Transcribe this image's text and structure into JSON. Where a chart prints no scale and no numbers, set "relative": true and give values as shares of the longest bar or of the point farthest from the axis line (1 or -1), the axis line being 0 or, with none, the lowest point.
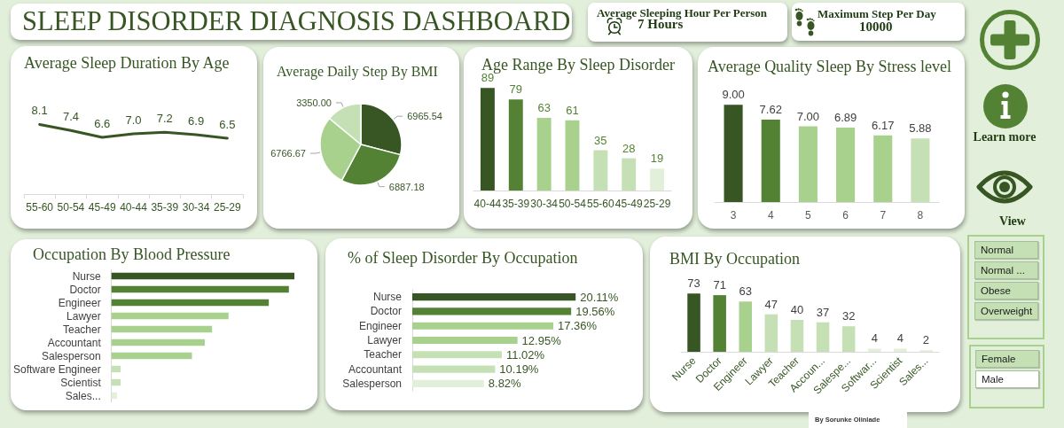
{
  "chart_data": [
    {
      "type": "other",
      "title": "SLEEP DISORDER DIAGNOSIS DASHBOARD"
    },
    {
      "type": "other",
      "title": "Average Sleeping Hour Per Person",
      "annotations": [
        "7 Hours"
      ]
    },
    {
      "type": "other",
      "title": "Maximum Step Per Day",
      "annotations": [
        "10000"
      ]
    },
    {
      "type": "line",
      "title": "Average Sleep Duration By Age",
      "categories": [
        "55-60",
        "50-54",
        "45-49",
        "40-44",
        "35-39",
        "30-34",
        "25-29"
      ],
      "values": [
        8.1,
        7.4,
        6.6,
        7.0,
        7.2,
        6.9,
        6.5
      ],
      "value_labels": [
        "8.1",
        "7.4",
        "6.6",
        "7.0",
        "7.2",
        "6.9",
        "6.5"
      ],
      "color": "#375623",
      "tick_labels": "x"
    },
    {
      "type": "pie",
      "title": "Average Daily Step By BMI",
      "categories": [
        null,
        null,
        null,
        null
      ],
      "values": [
        6965.54,
        6887.18,
        6766.67,
        3350.0
      ],
      "value_labels": [
        "6965.54",
        "6887.18",
        "6766.67",
        "3350.00"
      ],
      "colors": [
        "#375623",
        "#548235",
        "#a9d18e",
        "#c5e0b4"
      ]
    },
    {
      "type": "bar",
      "title": "Age Range By Sleep Disorder",
      "categories": [
        "40-44",
        "35-39",
        "30-34",
        "50-54",
        "55-60",
        "45-49",
        "25-29"
      ],
      "values": [
        89,
        79,
        63,
        61,
        35,
        28,
        19
      ],
      "colors": [
        "#375623",
        "#548235",
        "#a9d18e",
        "#a9d18e",
        "#c5e0b4",
        "#c5e0b4",
        "#e2f0d9"
      ],
      "data_labels": true,
      "tick_labels": "x"
    },
    {
      "type": "bar",
      "title": "Average Quality Sleep By Stress level",
      "categories": [
        "3",
        "4",
        "5",
        "6",
        "7",
        "8"
      ],
      "values": [
        9.0,
        7.62,
        7.0,
        6.89,
        6.17,
        5.88
      ],
      "value_labels": [
        "9.00",
        "7.62",
        "7.00",
        "6.89",
        "6.17",
        "5.88"
      ],
      "colors": [
        "#375623",
        "#548235",
        "#a9d18e",
        "#a9d18e",
        "#a9d18e",
        "#c5e0b4"
      ],
      "tick_labels": "x"
    },
    {
      "type": "other",
      "annotations": [
        "Learn more",
        "View"
      ]
    },
    {
      "type": "bar",
      "orientation": "horizontal",
      "relative": true,
      "title": "Occupation By Blood Pressure",
      "categories": [
        "Nurse",
        "Doctor",
        "Engineer",
        "Lawyer",
        "Teacher",
        "Accountant",
        "Salesperson",
        "Software Engineer",
        "Scientist",
        "Sales..."
      ],
      "values": [
        1,
        0.97,
        0.86,
        0.64,
        0.55,
        0.51,
        0.44,
        0.05,
        0.05,
        0.03
      ],
      "colors": [
        "#375623",
        "#548235",
        "#548235",
        "#a9d18e",
        "#a9d18e",
        "#a9d18e",
        "#a9d18e",
        "#c5e0b4",
        "#c5e0b4",
        "#e2f0d9"
      ]
    },
    {
      "type": "bar",
      "orientation": "horizontal",
      "title": "% of Sleep Disorder By Occupation",
      "categories": [
        "Nurse",
        "Doctor",
        "Engineer",
        "Lawyer",
        "Teacher",
        "Accountant",
        "Salesperson"
      ],
      "values": [
        20.11,
        19.56,
        17.36,
        12.95,
        11.02,
        10.19,
        8.82
      ],
      "value_labels": [
        "20.11%",
        "19.56%",
        "17.36%",
        "12.95%",
        "11.02%",
        "10.19%",
        "8.82%"
      ],
      "colors": [
        "#375623",
        "#548235",
        "#a9d18e",
        "#a9d18e",
        "#c5e0b4",
        "#c5e0b4",
        "#e2f0d9"
      ],
      "tick_labels": "y"
    },
    {
      "type": "bar",
      "title": "BMI By Occupation",
      "categories": [
        "Nurse",
        "Doctor",
        "Engineer",
        "Lawyer",
        "Teacher",
        "Accoun...",
        "Salespe...",
        "Softwar...",
        "Scientist",
        "Sales..."
      ],
      "values": [
        73,
        71,
        63,
        47,
        40,
        37,
        32,
        4,
        4,
        2
      ],
      "colors": [
        "#375623",
        "#548235",
        "#a9d18e",
        "#c5e0b4",
        "#c5e0b4",
        "#c5e0b4",
        "#c5e0b4",
        "#e2f0d9",
        "#e2f0d9",
        "#e2f0d9"
      ],
      "data_labels": true,
      "tick_labels": "x"
    },
    {
      "type": "other",
      "annotations": [
        "Normal",
        "Normal ...",
        "Obese",
        "Overweight"
      ],
      "colors": [
        "#c5e0b4",
        "#c5e0b4",
        "#c5e0b4",
        "#c5e0b4"
      ]
    },
    {
      "type": "other",
      "annotations": [
        "Female",
        "Male"
      ],
      "colors": [
        "#c5e0b4",
        "#ffffff"
      ]
    },
    {
      "type": "other",
      "annotations": [
        "By Sorunke Olinlade"
      ]
    }
  ]
}
